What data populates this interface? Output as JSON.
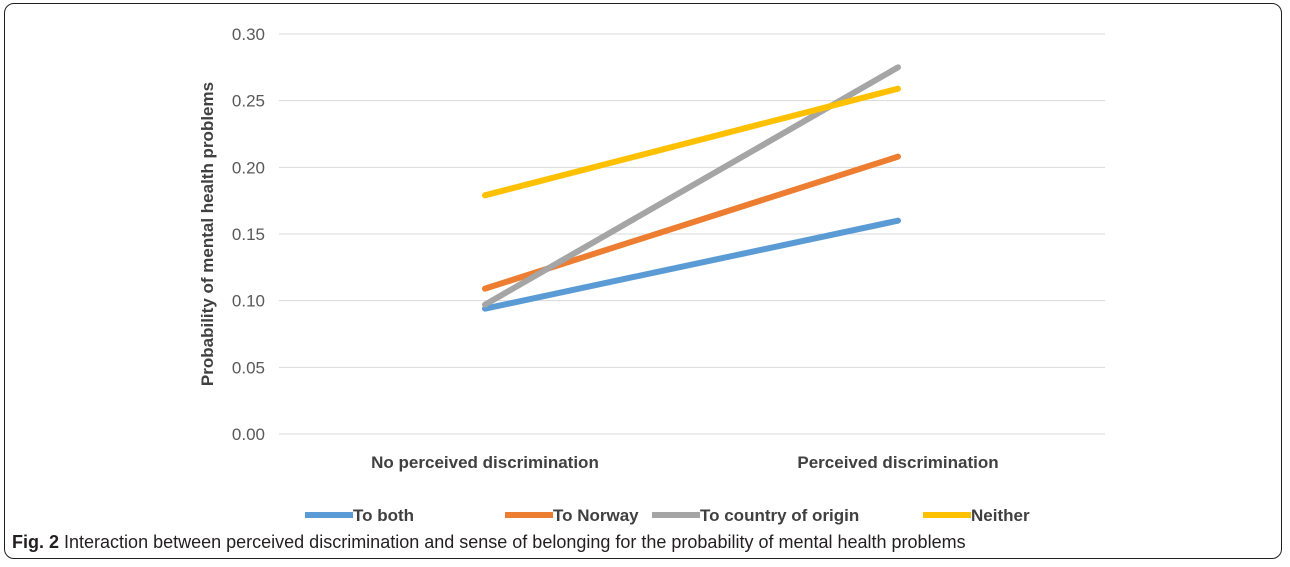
{
  "figure": {
    "caption_label": "Fig. 2",
    "caption_text": "Interaction between perceived discrimination and sense of belonging for the probability of mental health problems"
  },
  "chart_data": {
    "type": "line",
    "title": "",
    "xlabel": "",
    "ylabel": "Probability of mental health problems",
    "categories": [
      "No perceived discrimination",
      "Perceived discrimination"
    ],
    "ylim": [
      0,
      0.3
    ],
    "yticks": [
      "0.00",
      "0.05",
      "0.10",
      "0.15",
      "0.20",
      "0.25",
      "0.30"
    ],
    "grid": true,
    "legend_position": "bottom",
    "series": [
      {
        "name": "To both",
        "values": [
          0.094,
          0.16
        ],
        "color": "#5b9bd5"
      },
      {
        "name": "To Norway",
        "values": [
          0.109,
          0.208
        ],
        "color": "#ed7d31"
      },
      {
        "name": "To country of origin",
        "values": [
          0.097,
          0.275
        ],
        "color": "#a5a5a5"
      },
      {
        "name": "Neither",
        "values": [
          0.179,
          0.259
        ],
        "color": "#ffc000"
      }
    ]
  }
}
